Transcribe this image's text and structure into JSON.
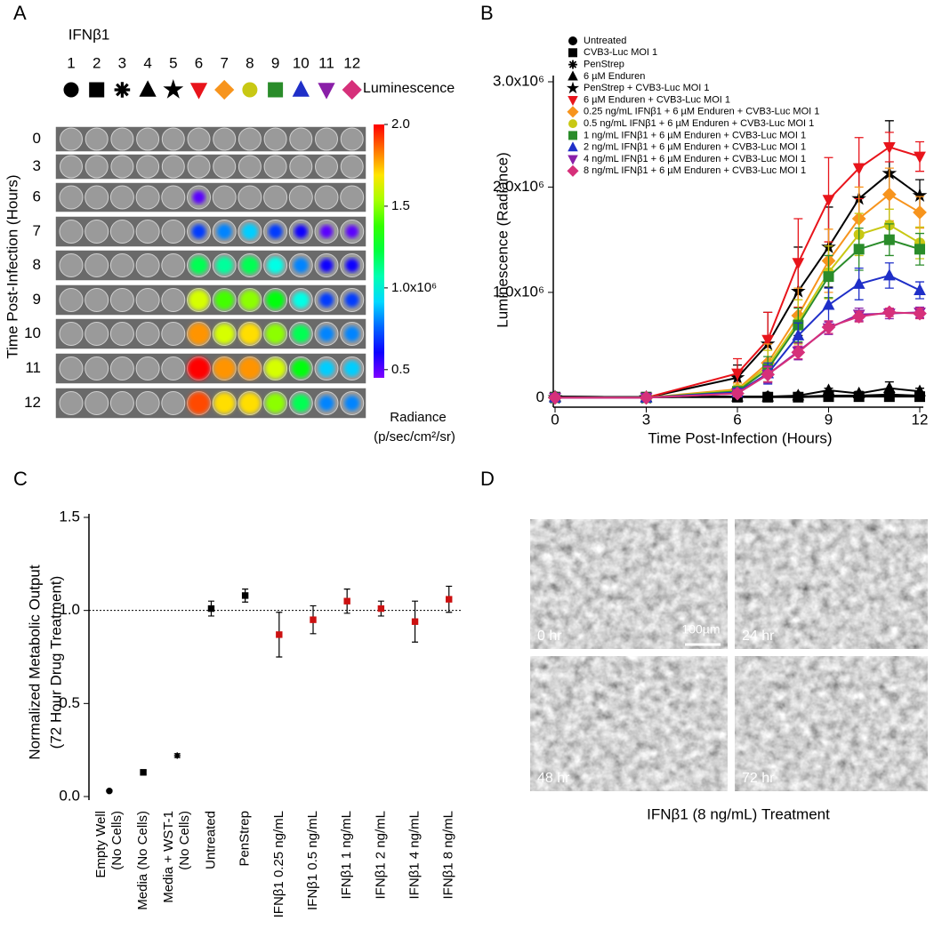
{
  "panel_labels": [
    "A",
    "B",
    "C",
    "D"
  ],
  "plate": {
    "title": "IFNβ1",
    "columns": [
      1,
      2,
      3,
      4,
      5,
      6,
      7,
      8,
      9,
      10,
      11,
      12
    ],
    "symbols_label": "Luminescence",
    "ylabel": "Time Post-Infection (Hours)",
    "rows": [
      0,
      3,
      6,
      7,
      8,
      9,
      10,
      11,
      12
    ],
    "radiance": [
      [
        null,
        null,
        null,
        null,
        null,
        null,
        null,
        null,
        null,
        null,
        null,
        null
      ],
      [
        null,
        null,
        null,
        null,
        null,
        null,
        null,
        null,
        null,
        null,
        null,
        null
      ],
      [
        null,
        null,
        null,
        null,
        null,
        0.5,
        null,
        null,
        null,
        null,
        null,
        null
      ],
      [
        null,
        null,
        null,
        null,
        null,
        0.7,
        0.8,
        0.9,
        0.7,
        0.6,
        0.5,
        0.5
      ],
      [
        null,
        null,
        null,
        null,
        null,
        1.2,
        1.1,
        1.2,
        1.0,
        0.8,
        0.6,
        0.6
      ],
      [
        null,
        null,
        null,
        null,
        null,
        1.6,
        1.4,
        1.5,
        1.3,
        1.0,
        0.7,
        0.7
      ],
      [
        null,
        null,
        null,
        null,
        null,
        1.8,
        1.6,
        1.7,
        1.5,
        1.2,
        0.8,
        0.8
      ],
      [
        null,
        null,
        null,
        null,
        null,
        2.0,
        1.8,
        1.8,
        1.6,
        1.3,
        0.9,
        0.9
      ],
      [
        null,
        null,
        null,
        null,
        null,
        1.9,
        1.7,
        1.7,
        1.5,
        1.2,
        0.8,
        0.8
      ]
    ],
    "clim": [
      0.45,
      2.0
    ],
    "cticks": [
      {
        "value": 2.0,
        "label": "2.0"
      },
      1.5,
      {
        "value": 1.0,
        "label": "1.0x10⁶"
      },
      0.5
    ],
    "clabel": [
      "Radiance",
      "(p/sec/cm²/sr)"
    ]
  },
  "chart_data": [
    {
      "type": "line",
      "ylabel": "Luminescence (Radiance)",
      "xlabel": "Time Post-Infection (Hours)",
      "x": [
        0,
        3,
        6,
        7,
        8,
        9,
        10,
        11,
        12
      ],
      "xlim": [
        0,
        12
      ],
      "xticks": [
        0,
        3,
        6,
        9,
        12
      ],
      "ylim": [
        -90000,
        3000000
      ],
      "yticks": [
        {
          "value": 3000000,
          "label": "3.0x10⁶"
        },
        {
          "value": 2000000,
          "label": "2.0x10⁶"
        },
        {
          "value": 1000000,
          "label": "1.0x10⁶"
        },
        0
      ],
      "series": [
        {
          "name": "Untreated",
          "color": "#000000",
          "marker": "circle",
          "values": [
            10000,
            5000,
            10000,
            10000,
            10000,
            15000,
            15000,
            20000,
            15000
          ],
          "errors": [
            5000,
            5000,
            5000,
            5000,
            5000,
            10000,
            10000,
            20000,
            10000
          ]
        },
        {
          "name": "CVB3-Luc MOI 1",
          "color": "#000000",
          "marker": "square",
          "values": [
            5000,
            5000,
            5000,
            5000,
            5000,
            10000,
            10000,
            10000,
            10000
          ],
          "errors": [
            5000,
            5000,
            5000,
            5000,
            5000,
            5000,
            5000,
            5000,
            5000
          ]
        },
        {
          "name": "PenStrep",
          "color": "#000000",
          "marker": "asterisk",
          "values": [
            10000,
            5000,
            10000,
            10000,
            10000,
            20000,
            20000,
            30000,
            20000
          ],
          "errors": [
            5000,
            5000,
            5000,
            5000,
            5000,
            10000,
            10000,
            20000,
            10000
          ]
        },
        {
          "name": "6 µM Enduren",
          "color": "#000000",
          "marker": "triangle",
          "values": [
            10000,
            5000,
            10000,
            10000,
            20000,
            70000,
            40000,
            90000,
            60000
          ],
          "errors": [
            5000,
            5000,
            5000,
            5000,
            10000,
            20000,
            20000,
            60000,
            30000
          ]
        },
        {
          "name": "PenStrep + CVB3-Luc MOI 1",
          "color": "#000000",
          "marker": "star",
          "values": [
            0,
            0,
            190000,
            510000,
            1010000,
            1430000,
            1890000,
            2130000,
            1920000
          ],
          "errors": [
            0,
            0,
            120000,
            300000,
            420000,
            380000,
            330000,
            500000,
            150000
          ]
        },
        {
          "name": "6 µM Enduren + CVB3-Luc MOI 1",
          "color": "#e8141b",
          "marker": "triangle-down",
          "values": [
            0,
            0,
            230000,
            550000,
            1280000,
            1880000,
            2180000,
            2380000,
            2290000
          ],
          "errors": [
            0,
            0,
            140000,
            260000,
            420000,
            400000,
            290000,
            140000,
            140000
          ]
        },
        {
          "name": "0.25 ng/mL IFNβ1 + 6 µM Enduren + CVB3-Luc MOI 1",
          "color": "#f7941d",
          "marker": "diamond",
          "values": [
            0,
            0,
            80000,
            330000,
            780000,
            1300000,
            1700000,
            1930000,
            1760000
          ],
          "errors": [
            0,
            0,
            60000,
            180000,
            260000,
            300000,
            300000,
            250000,
            150000
          ]
        },
        {
          "name": "0.5 ng/mL IFNβ1 + 6 µM Enduren + CVB3-Luc MOI 1",
          "color": "#c8c814",
          "marker": "circle",
          "values": [
            0,
            0,
            70000,
            300000,
            720000,
            1190000,
            1550000,
            1640000,
            1470000
          ],
          "errors": [
            0,
            0,
            50000,
            150000,
            210000,
            250000,
            200000,
            150000,
            150000
          ]
        },
        {
          "name": "1 ng/mL IFNβ1 + 6 µM Enduren + CVB3-Luc MOI 1",
          "color": "#2a8c2a",
          "marker": "square",
          "values": [
            0,
            0,
            60000,
            270000,
            690000,
            1150000,
            1410000,
            1500000,
            1410000
          ],
          "errors": [
            0,
            0,
            40000,
            120000,
            160000,
            200000,
            200000,
            150000,
            150000
          ]
        },
        {
          "name": "2 ng/mL IFNβ1 + 6 µM Enduren + CVB3-Luc MOI 1",
          "color": "#1f2fc8",
          "marker": "triangle",
          "values": [
            0,
            0,
            50000,
            230000,
            590000,
            880000,
            1080000,
            1160000,
            1020000
          ],
          "errors": [
            0,
            0,
            40000,
            100000,
            120000,
            160000,
            150000,
            120000,
            80000
          ]
        },
        {
          "name": "4 ng/mL IFNβ1 + 6 µM Enduren + CVB3-Luc MOI 1",
          "color": "#8a1fa8",
          "marker": "triangle-down",
          "values": [
            0,
            0,
            40000,
            220000,
            440000,
            660000,
            790000,
            800000,
            810000
          ],
          "errors": [
            0,
            0,
            30000,
            80000,
            80000,
            60000,
            60000,
            50000,
            50000
          ]
        },
        {
          "name": "8 ng/mL IFNβ1 + 6 µM Enduren + CVB3-Luc MOI 1",
          "color": "#d6307a",
          "marker": "diamond",
          "values": [
            0,
            0,
            40000,
            220000,
            430000,
            670000,
            770000,
            810000,
            800000
          ],
          "errors": [
            0,
            0,
            30000,
            70000,
            60000,
            60000,
            50000,
            40000,
            50000
          ]
        }
      ]
    },
    {
      "type": "errorbar",
      "ylabel": [
        "Normalized Metabolic Output",
        "(72 Hour Drug Treatment)"
      ],
      "categories": [
        [
          "Empty Well",
          "(No Cells)"
        ],
        [
          "Media (No Cells)"
        ],
        [
          "Media + WST-1",
          "(No Cells)"
        ],
        [
          "Untreated"
        ],
        [
          "PenStrep"
        ],
        [
          "IFNβ1 0.25 ng/mL"
        ],
        [
          "IFNβ1 0.5 ng/mL"
        ],
        [
          "IFNβ1 1 ng/mL"
        ],
        [
          "IFNβ1 2 ng/mL"
        ],
        [
          "IFNβ1 4 ng/mL"
        ],
        [
          "IFNβ1 8 ng/mL"
        ]
      ],
      "values": [
        0.03,
        0.13,
        0.22,
        1.01,
        1.08,
        0.87,
        0.95,
        1.05,
        1.01,
        0.94,
        1.06
      ],
      "errors": [
        0.005,
        0.01,
        0.01,
        0.04,
        0.035,
        0.12,
        0.075,
        0.065,
        0.04,
        0.11,
        0.07
      ],
      "colors": [
        "#000000",
        "#000000",
        "#000000",
        "#000000",
        "#000000",
        "#cc1111",
        "#cc1111",
        "#cc1111",
        "#cc1111",
        "#cc1111",
        "#cc1111"
      ],
      "markers": [
        "circle",
        "square",
        "asterisk",
        "square",
        "square",
        "square",
        "square",
        "square",
        "square",
        "square",
        "square"
      ],
      "ylim": [
        0,
        1.5
      ],
      "yticks": [
        {
          "value": 0,
          "label": "0.0"
        },
        0.5,
        {
          "value": 1.0,
          "label": "1.0"
        },
        1.5
      ],
      "reference_line": 1.0
    }
  ],
  "micrographs": {
    "labels": [
      "0 hr",
      "24 hr",
      "48 hr",
      "72 hr"
    ],
    "scale_bar": "100µm",
    "caption": "IFNβ1 (8 ng/mL) Treatment"
  }
}
